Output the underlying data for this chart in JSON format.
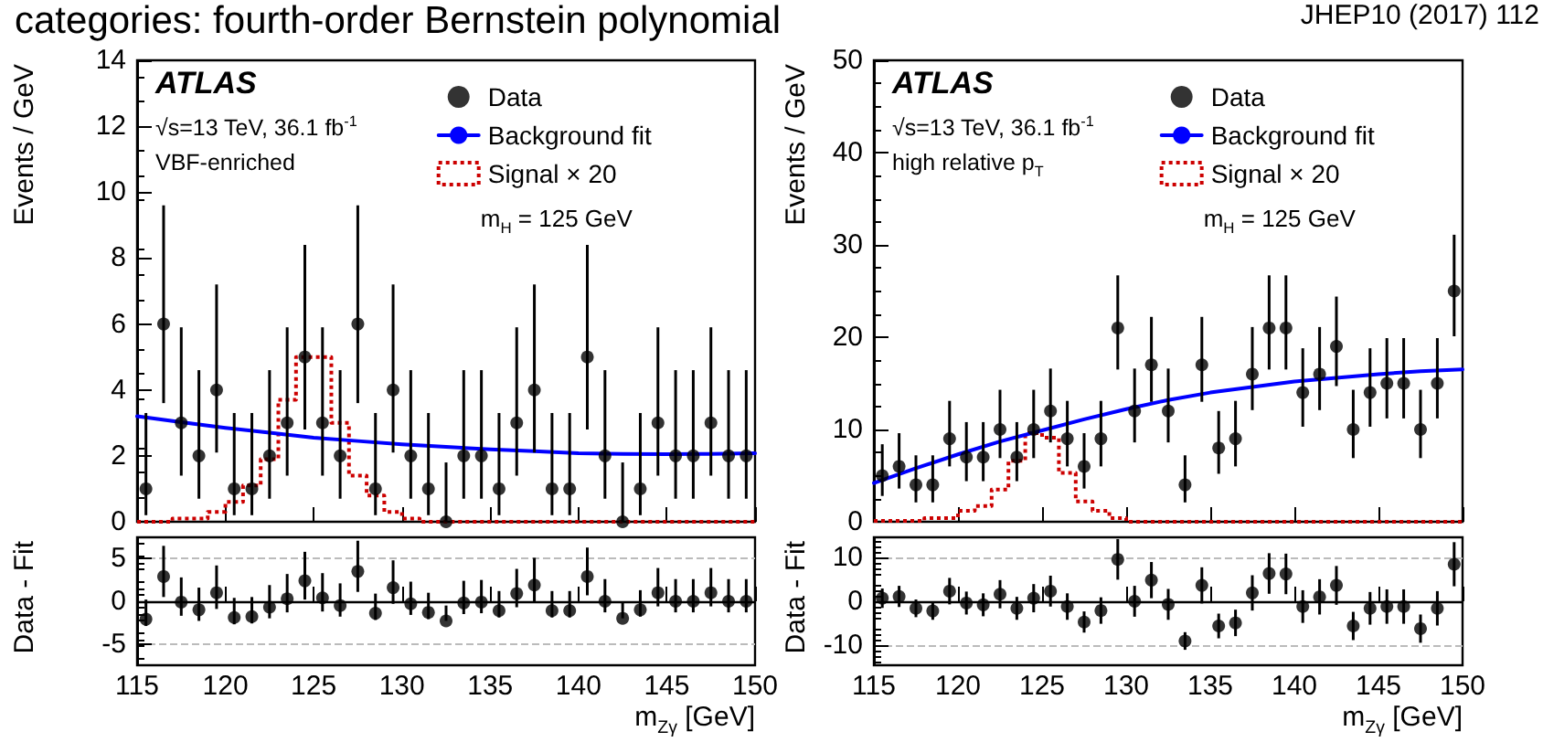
{
  "chart_data": [
    {
      "type": "scatter",
      "title": "categories: fourth-order Bernstein polynomial",
      "ylabel": "Events / GeV",
      "annotations": [
        "ATLAS",
        "√s=13 TeV, 36.1 fb$^{-1}$",
        "VBF-enriched",
        "m$_{H}$ = 125 GeV"
      ],
      "legend": "top right",
      "tick_labels": "y",
      "xlim": [
        115,
        150
      ],
      "xticks": [
        115,
        120,
        125,
        130,
        135,
        140,
        145,
        150
      ],
      "ylim": [
        0,
        14
      ],
      "yticks": [
        0,
        2,
        4,
        6,
        8,
        10,
        12,
        14
      ],
      "series": [
        {
          "name": "Data",
          "type": "scatter",
          "marker": "circle",
          "color": "#000000",
          "x": [
            115.5,
            116.5,
            117.5,
            118.5,
            119.5,
            120.5,
            121.5,
            122.5,
            123.5,
            124.5,
            125.5,
            126.5,
            127.5,
            128.5,
            129.5,
            130.5,
            131.5,
            132.5,
            133.5,
            134.5,
            135.5,
            136.5,
            137.5,
            138.5,
            139.5,
            140.5,
            141.5,
            142.5,
            143.5,
            144.5,
            145.5,
            146.5,
            147.5,
            148.5,
            149.5
          ],
          "values": [
            1,
            6,
            3,
            2,
            4,
            1,
            1,
            2,
            3,
            5,
            3,
            2,
            6,
            1,
            4,
            2,
            1,
            0,
            2,
            2,
            1,
            3,
            4,
            1,
            1,
            5,
            2,
            0,
            1,
            3,
            2,
            2,
            3,
            2,
            2
          ],
          "errors": [
            [
              0.2,
              3.3
            ],
            [
              3.6,
              9.6
            ],
            [
              1.4,
              5.9
            ],
            [
              0.7,
              4.6
            ],
            [
              2.1,
              7.2
            ],
            [
              0.2,
              3.3
            ],
            [
              0.2,
              3.3
            ],
            [
              0.7,
              4.6
            ],
            [
              1.4,
              5.9
            ],
            [
              2.8,
              8.4
            ],
            [
              1.4,
              5.9
            ],
            [
              0.7,
              4.6
            ],
            [
              3.6,
              9.6
            ],
            [
              0.2,
              3.3
            ],
            [
              2.1,
              7.2
            ],
            [
              0.7,
              4.6
            ],
            [
              0.2,
              3.3
            ],
            [
              0,
              1.8
            ],
            [
              0.7,
              4.6
            ],
            [
              0.7,
              4.6
            ],
            [
              0.2,
              3.3
            ],
            [
              1.4,
              5.9
            ],
            [
              2.1,
              7.2
            ],
            [
              0.2,
              3.3
            ],
            [
              0.2,
              3.3
            ],
            [
              2.8,
              8.4
            ],
            [
              0.7,
              4.6
            ],
            [
              0,
              1.8
            ],
            [
              0.2,
              3.3
            ],
            [
              1.4,
              5.9
            ],
            [
              0.7,
              4.6
            ],
            [
              0.7,
              4.6
            ],
            [
              1.4,
              5.9
            ],
            [
              0.7,
              4.6
            ],
            [
              0.7,
              4.6
            ]
          ]
        },
        {
          "name": "Background fit",
          "type": "line",
          "color": "#0000ff",
          "x": [
            115,
            117.5,
            120,
            122.5,
            125,
            127.5,
            130,
            132.5,
            135,
            137.5,
            140,
            142.5,
            145,
            147.5,
            150
          ],
          "values": [
            3.2,
            3.02,
            2.85,
            2.7,
            2.55,
            2.45,
            2.35,
            2.27,
            2.2,
            2.14,
            2.08,
            2.06,
            2.05,
            2.06,
            2.08
          ]
        },
        {
          "name": "Signal × 20",
          "type": "step",
          "color": "#cc0000",
          "line_style": "dotted",
          "x": [
            115,
            117,
            119,
            120,
            121,
            122,
            123,
            124,
            125,
            126,
            127,
            128,
            129,
            130,
            131,
            150
          ],
          "values": [
            0,
            0.1,
            0.3,
            0.6,
            1.1,
            1.9,
            3.7,
            5.0,
            5.0,
            3.0,
            1.4,
            0.8,
            0.3,
            0.1,
            0,
            0
          ]
        }
      ]
    },
    {
      "type": "scatter",
      "xlabel": "m$_{Zγ}$ [GeV]",
      "ylabel": "Data - Fit",
      "marker": "circle",
      "grid": "y",
      "xlim": [
        115,
        150
      ],
      "xticks": [
        115,
        120,
        125,
        130,
        135,
        140,
        145,
        150
      ],
      "ylim": [
        -7.5,
        7.5
      ],
      "yticks": [
        -5,
        0,
        5
      ],
      "ref_lines": [
        {
          "axis": "y",
          "value": 0,
          "color": "#000000"
        }
      ],
      "series": [
        {
          "type": "scatter",
          "color": "#000000",
          "x": [
            115.5,
            116.5,
            117.5,
            118.5,
            119.5,
            120.5,
            121.5,
            122.5,
            123.5,
            124.5,
            125.5,
            126.5,
            127.5,
            128.5,
            129.5,
            130.5,
            131.5,
            132.5,
            133.5,
            134.5,
            135.5,
            136.5,
            137.5,
            138.5,
            139.5,
            140.5,
            141.5,
            142.5,
            143.5,
            144.5,
            145.5,
            146.5,
            147.5,
            148.5,
            149.5
          ],
          "values": [
            -2.1,
            2.9,
            -0.1,
            -1.0,
            1.0,
            -1.9,
            -1.8,
            -0.7,
            0.3,
            2.4,
            0.4,
            -0.5,
            3.5,
            -1.4,
            1.6,
            -0.3,
            -1.3,
            -2.3,
            -0.2,
            -0.1,
            -1.1,
            0.9,
            1.9,
            -1.1,
            -1.1,
            2.9,
            0,
            -2.0,
            -1.0,
            1.0,
            0,
            0,
            1.0,
            0,
            0
          ],
          "errors": [
            [
              -2.9,
              0.2
            ],
            [
              0.5,
              6.5
            ],
            [
              -1.7,
              2.8
            ],
            [
              -2.3,
              1.6
            ],
            [
              -0.9,
              4.2
            ],
            [
              -2.7,
              0.4
            ],
            [
              -2.6,
              0.5
            ],
            [
              -2.0,
              1.9
            ],
            [
              -1.3,
              3.2
            ],
            [
              0.2,
              5.8
            ],
            [
              -1.2,
              3.3
            ],
            [
              -1.8,
              2.1
            ],
            [
              1.1,
              7.1
            ],
            [
              -2.2,
              0.9
            ],
            [
              -0.3,
              4.8
            ],
            [
              -1.6,
              2.3
            ],
            [
              -2.1,
              1.0
            ],
            [
              -2.3,
              -0.5
            ],
            [
              -1.5,
              2.4
            ],
            [
              -1.4,
              2.5
            ],
            [
              -1.9,
              1.2
            ],
            [
              -0.7,
              3.8
            ],
            [
              0.0,
              5.1
            ],
            [
              -1.9,
              1.2
            ],
            [
              -1.9,
              1.2
            ],
            [
              0.7,
              6.3
            ],
            [
              -1.3,
              2.6
            ],
            [
              -2.0,
              -0.2
            ],
            [
              -1.8,
              1.3
            ],
            [
              -0.6,
              3.9
            ],
            [
              -1.3,
              2.6
            ],
            [
              -1.3,
              2.6
            ],
            [
              -0.6,
              3.9
            ],
            [
              -1.3,
              2.6
            ],
            [
              -1.3,
              2.6
            ]
          ]
        }
      ]
    },
    {
      "type": "scatter",
      "ylabel": "Events / GeV",
      "annotations": [
        "ATLAS",
        "√s=13 TeV, 36.1 fb$^{-1}$",
        "high relative p$_{T}$",
        "m$_{H}$ = 125 GeV",
        "JHEP10 (2017) 112"
      ],
      "legend": "top right",
      "tick_labels": "y",
      "xlim": [
        115,
        150
      ],
      "xticks": [
        115,
        120,
        125,
        130,
        135,
        140,
        145,
        150
      ],
      "ylim": [
        0,
        50
      ],
      "yticks": [
        0,
        10,
        20,
        30,
        40,
        50
      ],
      "series": [
        {
          "name": "Data",
          "type": "scatter",
          "marker": "circle",
          "color": "#000000",
          "x": [
            115.5,
            116.5,
            117.5,
            118.5,
            119.5,
            120.5,
            121.5,
            122.5,
            123.5,
            124.5,
            125.5,
            126.5,
            127.5,
            128.5,
            129.5,
            130.5,
            131.5,
            132.5,
            133.5,
            134.5,
            135.5,
            136.5,
            137.5,
            138.5,
            139.5,
            140.5,
            141.5,
            142.5,
            143.5,
            144.5,
            145.5,
            146.5,
            147.5,
            148.5,
            149.5
          ],
          "values": [
            5,
            6,
            4,
            4,
            9,
            7,
            7,
            10,
            7,
            10,
            12,
            9,
            6,
            9,
            21,
            12,
            17,
            12,
            4,
            17,
            8,
            9,
            16,
            21,
            21,
            14,
            16,
            19,
            10,
            14,
            15,
            15,
            10,
            15,
            25
          ],
          "errors": [
            [
              2.8,
              8.4
            ],
            [
              3.6,
              9.6
            ],
            [
              2.1,
              7.2
            ],
            [
              2.1,
              7.2
            ],
            [
              6.0,
              13.1
            ],
            [
              4.4,
              10.8
            ],
            [
              4.4,
              10.8
            ],
            [
              6.9,
              14.3
            ],
            [
              4.4,
              10.8
            ],
            [
              6.9,
              14.3
            ],
            [
              8.6,
              16.6
            ],
            [
              6.0,
              13.1
            ],
            [
              3.6,
              9.6
            ],
            [
              6.0,
              13.1
            ],
            [
              16.5,
              26.7
            ],
            [
              8.6,
              16.6
            ],
            [
              13.0,
              22.2
            ],
            [
              8.6,
              16.6
            ],
            [
              2.1,
              7.2
            ],
            [
              13.0,
              22.2
            ],
            [
              5.2,
              12.0
            ],
            [
              6.0,
              13.1
            ],
            [
              12.1,
              21.1
            ],
            [
              16.5,
              26.7
            ],
            [
              16.5,
              26.7
            ],
            [
              10.3,
              18.8
            ],
            [
              12.1,
              21.1
            ],
            [
              14.7,
              24.4
            ],
            [
              6.9,
              14.3
            ],
            [
              10.3,
              18.8
            ],
            [
              11.2,
              19.9
            ],
            [
              11.2,
              19.9
            ],
            [
              6.9,
              14.3
            ],
            [
              11.2,
              19.9
            ],
            [
              20.1,
              31.1
            ]
          ]
        },
        {
          "name": "Background fit",
          "type": "line",
          "color": "#0000ff",
          "x": [
            115,
            117.5,
            120,
            122.5,
            125,
            127.5,
            130,
            132.5,
            135,
            137.5,
            140,
            142.5,
            145,
            147.5,
            150
          ],
          "values": [
            4.2,
            5.8,
            7.3,
            8.7,
            9.9,
            11.1,
            12.2,
            13.2,
            14.0,
            14.6,
            15.2,
            15.6,
            16.0,
            16.3,
            16.5
          ]
        },
        {
          "name": "Signal × 20",
          "type": "step",
          "color": "#cc0000",
          "line_style": "dotted",
          "x": [
            115,
            118,
            120,
            121,
            122,
            123,
            124,
            125,
            126,
            127,
            128,
            129,
            130,
            150
          ],
          "values": [
            0.1,
            0.4,
            1.2,
            1.7,
            3.5,
            6.6,
            9.6,
            9.1,
            5.3,
            2.2,
            1.2,
            0.4,
            0,
            0
          ]
        }
      ]
    },
    {
      "type": "scatter",
      "xlabel": "m$_{Zγ}$ [GeV]",
      "ylabel": "Data - Fit",
      "marker": "circle",
      "grid": "y",
      "xlim": [
        115,
        150
      ],
      "xticks": [
        115,
        120,
        125,
        130,
        135,
        140,
        145,
        150
      ],
      "ylim": [
        -14.5,
        14.5
      ],
      "yticks": [
        -10,
        0,
        10
      ],
      "ref_lines": [
        {
          "axis": "y",
          "value": 0,
          "color": "#000000"
        }
      ],
      "series": [
        {
          "type": "scatter",
          "color": "#000000",
          "x": [
            115.5,
            116.5,
            117.5,
            118.5,
            119.5,
            120.5,
            121.5,
            122.5,
            123.5,
            124.5,
            125.5,
            126.5,
            127.5,
            128.5,
            129.5,
            130.5,
            131.5,
            132.5,
            133.5,
            134.5,
            135.5,
            136.5,
            137.5,
            138.5,
            139.5,
            140.5,
            141.5,
            142.5,
            143.5,
            144.5,
            145.5,
            146.5,
            147.5,
            148.5,
            149.5
          ],
          "values": [
            0.7,
            1.1,
            -1.6,
            -2.2,
            2.3,
            -0.4,
            -0.8,
            1.6,
            -1.6,
            0.7,
            2.3,
            -1.2,
            -4.7,
            -2.1,
            9.5,
            0,
            4.8,
            -0.7,
            -9.0,
            3.6,
            -5.6,
            -4.9,
            1.9,
            6.3,
            6.2,
            -1.2,
            1.0,
            3.6,
            -5.6,
            -1.6,
            -1.2,
            -1.2,
            -6.2,
            -1.6,
            8.4
          ],
          "errors": [
            2.2,
            2.4,
            2.0,
            2.0,
            3.0,
            2.6,
            2.6,
            3.2,
            2.6,
            3.2,
            3.5,
            3.0,
            2.4,
            3.0,
            4.6,
            3.5,
            4.1,
            3.5,
            2.0,
            4.1,
            2.8,
            3.0,
            4.0,
            4.6,
            4.6,
            3.7,
            4.0,
            4.4,
            3.2,
            3.7,
            3.9,
            3.9,
            3.2,
            3.9,
            5.0
          ]
        }
      ]
    }
  ]
}
